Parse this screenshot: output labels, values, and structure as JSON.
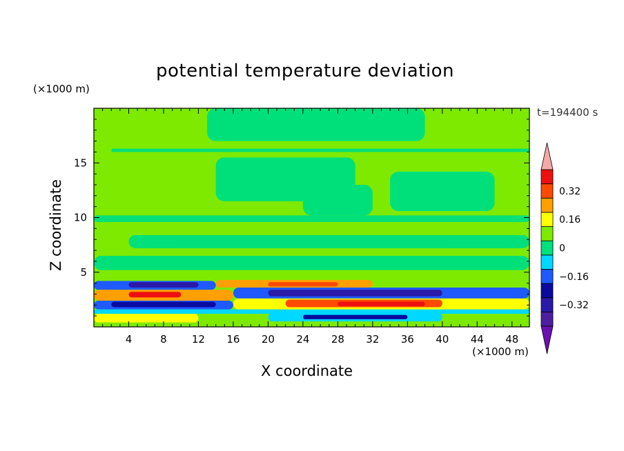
{
  "chart_data": {
    "type": "heatmap",
    "title": "potential temperature deviation",
    "xlabel": "X coordinate",
    "ylabel": "Z coordinate",
    "x_unit": "(×1000 m)",
    "y_unit": "(×1000 m)",
    "time_label": "t=194400 s",
    "xlim": [
      0,
      50
    ],
    "ylim": [
      0,
      20
    ],
    "x_ticks": [
      4,
      8,
      12,
      16,
      20,
      24,
      28,
      32,
      36,
      40,
      44,
      48
    ],
    "y_ticks": [
      5,
      10,
      15
    ],
    "colorbar": {
      "levels": [
        -0.4,
        -0.32,
        -0.24,
        -0.16,
        -0.08,
        0,
        0.08,
        0.16,
        0.24,
        0.32,
        0.4
      ],
      "tick_labels": [
        "0.32",
        "0.16",
        "0",
        "−0.16",
        "−0.32"
      ],
      "tick_values": [
        0.32,
        0.16,
        0,
        -0.16,
        -0.32
      ],
      "colors": [
        "#4b1fa0",
        "#2a1aa8",
        "#0a0aa0",
        "#1e5aff",
        "#00d8ff",
        "#00e07a",
        "#7dea00",
        "#ffff00",
        "#ffa000",
        "#ff4a00",
        "#ee1010"
      ],
      "under_color": "#6a10b0",
      "over_color": "#f4a8a8"
    },
    "bands": [
      {
        "x0": 0,
        "x1": 50,
        "z0": 0.0,
        "z1": 0.4,
        "level": 0.08
      },
      {
        "x0": 0,
        "x1": 12,
        "z0": 0.4,
        "z1": 1.2,
        "level": 0.16
      },
      {
        "x0": 12,
        "x1": 50,
        "z0": 0.4,
        "z1": 1.2,
        "level": 0.08
      },
      {
        "x0": 20,
        "x1": 40,
        "z0": 0.5,
        "z1": 1.3,
        "level": -0.08
      },
      {
        "x0": 24,
        "x1": 36,
        "z0": 0.7,
        "z1": 1.1,
        "level": -0.24
      },
      {
        "x0": 0,
        "x1": 50,
        "z0": 1.2,
        "z1": 1.6,
        "level": -0.08
      },
      {
        "x0": 0,
        "x1": 16,
        "z0": 1.6,
        "z1": 2.4,
        "level": -0.16
      },
      {
        "x0": 2,
        "x1": 14,
        "z0": 1.8,
        "z1": 2.3,
        "level": -0.24
      },
      {
        "x0": 16,
        "x1": 50,
        "z0": 1.6,
        "z1": 2.6,
        "level": 0.16
      },
      {
        "x0": 22,
        "x1": 40,
        "z0": 1.8,
        "z1": 2.5,
        "level": 0.32
      },
      {
        "x0": 28,
        "x1": 38,
        "z0": 1.9,
        "z1": 2.3,
        "level": 0.4
      },
      {
        "x0": 0,
        "x1": 16,
        "z0": 2.4,
        "z1": 3.4,
        "level": 0.24
      },
      {
        "x0": 4,
        "x1": 10,
        "z0": 2.7,
        "z1": 3.2,
        "level": 0.4
      },
      {
        "x0": 16,
        "x1": 50,
        "z0": 2.6,
        "z1": 3.6,
        "level": -0.16
      },
      {
        "x0": 20,
        "x1": 40,
        "z0": 2.8,
        "z1": 3.4,
        "level": -0.32
      },
      {
        "x0": 0,
        "x1": 14,
        "z0": 3.4,
        "z1": 4.2,
        "level": -0.16
      },
      {
        "x0": 4,
        "x1": 12,
        "z0": 3.6,
        "z1": 4.1,
        "level": -0.32
      },
      {
        "x0": 14,
        "x1": 32,
        "z0": 3.6,
        "z1": 4.3,
        "level": 0.24
      },
      {
        "x0": 20,
        "x1": 28,
        "z0": 3.7,
        "z1": 4.1,
        "level": 0.32
      },
      {
        "x0": 0,
        "x1": 50,
        "z0": 4.3,
        "z1": 5.2,
        "level": 0.08
      },
      {
        "x0": 0,
        "x1": 50,
        "z0": 5.2,
        "z1": 6.5,
        "level": 0.0
      },
      {
        "x0": 0,
        "x1": 50,
        "z0": 6.5,
        "z1": 7.2,
        "level": 0.08
      },
      {
        "x0": 4,
        "x1": 50,
        "z0": 7.2,
        "z1": 8.4,
        "level": 0.0
      },
      {
        "x0": 0,
        "x1": 50,
        "z0": 8.4,
        "z1": 9.6,
        "level": 0.08
      },
      {
        "x0": 0,
        "x1": 50,
        "z0": 9.6,
        "z1": 10.2,
        "level": 0.0
      },
      {
        "x0": 24,
        "x1": 32,
        "z0": 10.2,
        "z1": 13.0,
        "level": 0.0
      },
      {
        "x0": 34,
        "x1": 46,
        "z0": 10.6,
        "z1": 14.2,
        "level": 0.0
      },
      {
        "x0": 14,
        "x1": 30,
        "z0": 11.5,
        "z1": 15.5,
        "level": 0.0
      },
      {
        "x0": 2,
        "x1": 50,
        "z0": 16.0,
        "z1": 16.3,
        "level": 0.0
      },
      {
        "x0": 13,
        "x1": 38,
        "z0": 17.0,
        "z1": 20.0,
        "level": 0.0
      }
    ]
  }
}
